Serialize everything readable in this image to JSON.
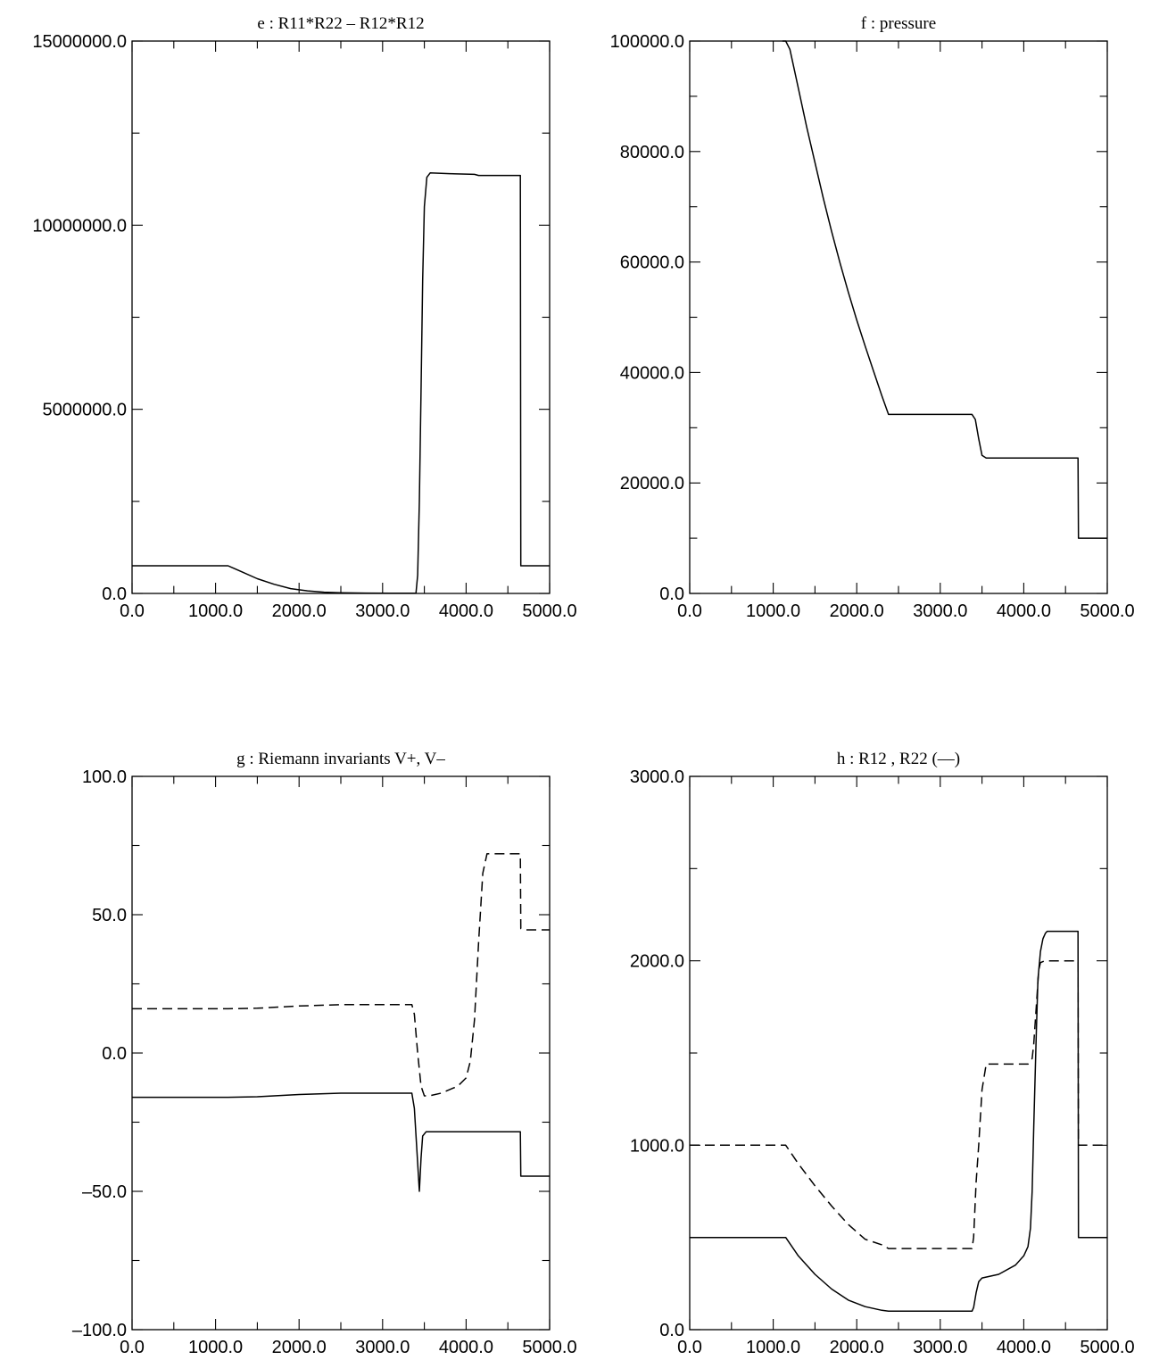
{
  "chart_data": [
    {
      "type": "line",
      "title": "e : R11*R22 – R12*R12",
      "xlim": [
        0,
        5000
      ],
      "ylim": [
        0,
        15000000
      ],
      "xticks": [
        "0.0",
        "1000.0",
        "2000.0",
        "3000.0",
        "4000.0",
        "5000.0"
      ],
      "yticks": [
        "0.0",
        "5000000.0",
        "10000000.0",
        "15000000.0"
      ],
      "yticks_values": [
        0,
        5000000,
        10000000,
        15000000
      ],
      "grid": false,
      "series": [
        {
          "style": "solid",
          "x": [
            0,
            1150,
            1300,
            1500,
            1700,
            1900,
            2100,
            2300,
            2500,
            2800,
            3100,
            3400,
            3420,
            3440,
            3460,
            3480,
            3500,
            3530,
            3570,
            3800,
            4100,
            4150,
            4650,
            4655,
            5000
          ],
          "y": [
            750000,
            750000,
            600000,
            400000,
            250000,
            130000,
            70000,
            35000,
            20000,
            10000,
            5000,
            5000,
            500000,
            2500000,
            5500000,
            8500000,
            10500000,
            11300000,
            11420000,
            11400000,
            11380000,
            11350000,
            11350000,
            750000,
            750000
          ]
        }
      ]
    },
    {
      "type": "line",
      "title": "f : pressure",
      "xlim": [
        0,
        5000
      ],
      "ylim": [
        0,
        100000
      ],
      "xticks": [
        "0.0",
        "1000.0",
        "2000.0",
        "3000.0",
        "4000.0",
        "5000.0"
      ],
      "yticks": [
        "0.0",
        "20000.0",
        "40000.0",
        "60000.0",
        "80000.0",
        "100000.0"
      ],
      "yticks_values": [
        0,
        20000,
        40000,
        60000,
        80000,
        100000
      ],
      "grid": false,
      "series": [
        {
          "style": "solid",
          "x": [
            1110,
            1150,
            1200,
            1300,
            1400,
            1500,
            1600,
            1700,
            1800,
            1900,
            2000,
            2100,
            2200,
            2300,
            2380,
            3380,
            3420,
            3460,
            3500,
            3550,
            4650,
            4655,
            5000
          ],
          "y": [
            100000,
            100000,
            98500,
            91500,
            84500,
            78000,
            71500,
            65500,
            59800,
            54500,
            49500,
            44800,
            40300,
            35800,
            32400,
            32400,
            31500,
            28000,
            25000,
            24500,
            24500,
            10000,
            10000
          ]
        }
      ]
    },
    {
      "type": "line",
      "title": "g : Riemann invariants V+, V–",
      "xlim": [
        0,
        5000
      ],
      "ylim": [
        -100,
        100
      ],
      "xticks": [
        "0.0",
        "1000.0",
        "2000.0",
        "3000.0",
        "4000.0",
        "5000.0"
      ],
      "yticks": [
        "–100.0",
        "–50.0",
        "0.0",
        "50.0",
        "100.0"
      ],
      "yticks_values": [
        -100,
        -50,
        0,
        50,
        100
      ],
      "grid": false,
      "series": [
        {
          "style": "solid",
          "x": [
            0,
            1150,
            1500,
            2000,
            2500,
            3000,
            3350,
            3380,
            3410,
            3440,
            3460,
            3480,
            3520,
            3600,
            4000,
            4650,
            4655,
            5000
          ],
          "y": [
            -16,
            -16,
            -15.8,
            -15,
            -14.5,
            -14.5,
            -14.5,
            -20,
            -35,
            -50,
            -38,
            -30,
            -28.5,
            -28.5,
            -28.5,
            -28.5,
            -44.5,
            -44.5
          ]
        },
        {
          "style": "dashed",
          "x": [
            0,
            1150,
            1500,
            2000,
            2500,
            3000,
            3350,
            3380,
            3420,
            3460,
            3500,
            3560,
            3700,
            3900,
            4000,
            4050,
            4100,
            4150,
            4200,
            4250,
            4650,
            4655,
            4720,
            5000
          ],
          "y": [
            16,
            16,
            16.2,
            17,
            17.5,
            17.5,
            17.5,
            14,
            0,
            -12,
            -15.5,
            -15.5,
            -14.5,
            -12,
            -9,
            -3,
            12,
            40,
            65,
            72,
            72,
            45,
            44.5,
            44.5
          ]
        }
      ]
    },
    {
      "type": "line",
      "title": "h : R12 , R22 (––)",
      "xlim": [
        0,
        5000
      ],
      "ylim": [
        0,
        3000
      ],
      "xticks": [
        "0.0",
        "1000.0",
        "2000.0",
        "3000.0",
        "4000.0",
        "5000.0"
      ],
      "yticks": [
        "0.0",
        "1000.0",
        "2000.0",
        "3000.0"
      ],
      "yticks_values": [
        0,
        1000,
        2000,
        3000
      ],
      "grid": false,
      "series": [
        {
          "style": "solid",
          "x": [
            0,
            1150,
            1300,
            1500,
            1700,
            1900,
            2100,
            2300,
            2380,
            3380,
            3400,
            3430,
            3460,
            3500,
            3700,
            3900,
            4000,
            4050,
            4080,
            4100,
            4120,
            4150,
            4170,
            4200,
            4230,
            4260,
            4280,
            4650,
            4655,
            5000
          ],
          "y": [
            500,
            500,
            400,
            300,
            220,
            160,
            125,
            105,
            100,
            100,
            120,
            200,
            260,
            280,
            300,
            350,
            400,
            450,
            550,
            750,
            1100,
            1600,
            1900,
            2050,
            2120,
            2150,
            2160,
            2160,
            500,
            500
          ]
        },
        {
          "style": "dashed",
          "x": [
            0,
            1150,
            1300,
            1500,
            1700,
            1900,
            2100,
            2300,
            2380,
            3380,
            3400,
            3430,
            3460,
            3500,
            3550,
            4050,
            4100,
            4120,
            4150,
            4180,
            4200,
            4250,
            4650,
            4655,
            5000
          ],
          "y": [
            1000,
            1000,
            900,
            780,
            670,
            570,
            490,
            460,
            440,
            440,
            500,
            800,
            1000,
            1300,
            1440,
            1440,
            1470,
            1550,
            1750,
            1950,
            1990,
            2000,
            2000,
            1000,
            1000
          ]
        }
      ]
    }
  ]
}
